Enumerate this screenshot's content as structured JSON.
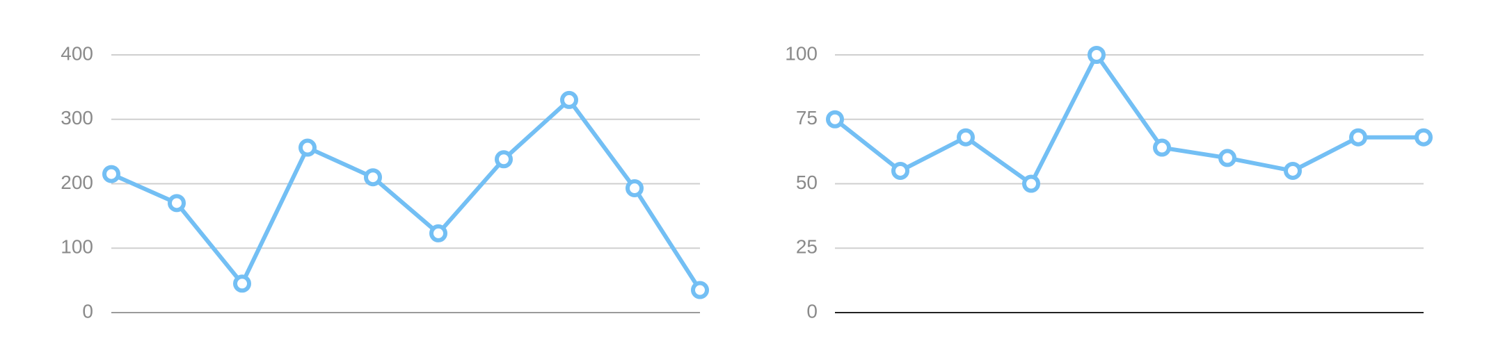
{
  "colors": {
    "series": "#73bff4",
    "grid": "#cfcfcf",
    "tick_text": "#8a8a8a",
    "baseline_left": "#9a9a9a",
    "baseline_right": "#222222"
  },
  "chart_data": [
    {
      "type": "line",
      "ylim": [
        0,
        400
      ],
      "yticks": [
        "0",
        "100",
        "200",
        "300",
        "400"
      ],
      "grid": true,
      "series": [
        {
          "values": [
            215,
            170,
            45,
            256,
            210,
            123,
            238,
            330,
            193,
            35
          ]
        }
      ]
    },
    {
      "type": "line",
      "ylim": [
        0,
        100
      ],
      "yticks": [
        "0",
        "25",
        "50",
        "75",
        "100"
      ],
      "grid": true,
      "series": [
        {
          "values": [
            75,
            55,
            68,
            50,
            100,
            64,
            60,
            55,
            68,
            68
          ]
        }
      ]
    }
  ]
}
